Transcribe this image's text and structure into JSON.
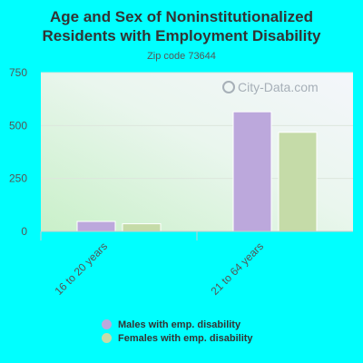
{
  "title_line1": "Age and Sex of Noninstitutionalized",
  "title_line2": "Residents with Employment Disability",
  "subtitle": "Zip code 73644",
  "watermark": "City-Data.com",
  "colors": {
    "background": "#00ffff",
    "males": "#bca8dc",
    "females": "#c5dba8"
  },
  "chart_data": {
    "type": "bar",
    "categories": [
      "16 to 20 years",
      "21 to 64 years"
    ],
    "series": [
      {
        "name": "Males with emp. disability",
        "values": [
          47,
          565
        ]
      },
      {
        "name": "Females with emp. disability",
        "values": [
          36,
          468
        ]
      }
    ],
    "yticks": [
      0,
      250,
      500,
      750
    ],
    "ylim": [
      0,
      750
    ],
    "grid": true,
    "legend_position": "bottom"
  }
}
